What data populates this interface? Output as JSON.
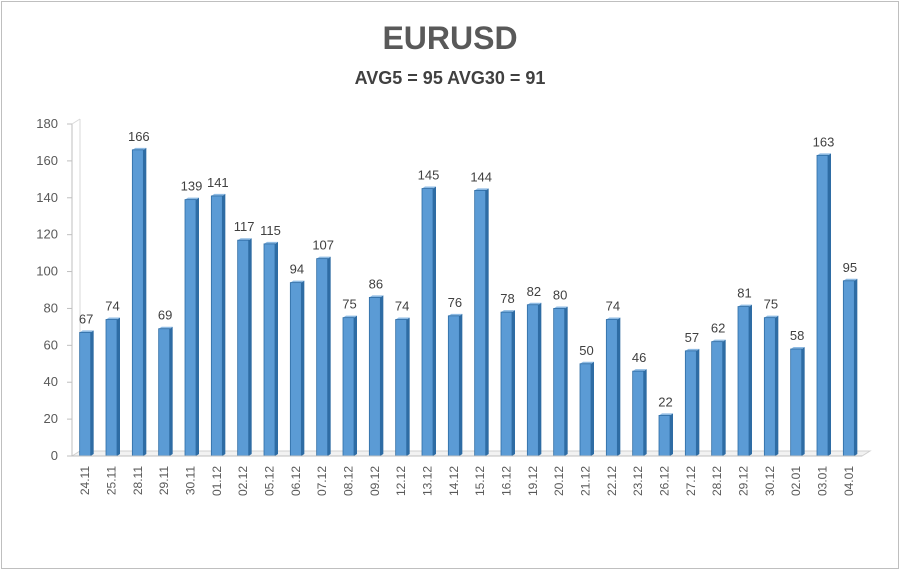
{
  "chart_data": {
    "type": "bar",
    "title": "EURUSD",
    "subtitle": "AVG5 = 95 AVG30 = 91",
    "xlabel": "",
    "ylabel": "",
    "ylim": [
      0,
      180
    ],
    "ytick_step": 20,
    "grid": false,
    "legend": "none",
    "bar_color": "#5b9bd5",
    "bar_dark": "#2e6ca4",
    "categories": [
      "24.11",
      "25.11",
      "28.11",
      "29.11",
      "30.11",
      "01.12",
      "02.12",
      "05.12",
      "06.12",
      "07.12",
      "08.12",
      "09.12",
      "12.12",
      "13.12",
      "14.12",
      "15.12",
      "16.12",
      "19.12",
      "20.12",
      "21.12",
      "22.12",
      "23.12",
      "26.12",
      "27.12",
      "28.12",
      "29.12",
      "30.12",
      "02.01",
      "03.01",
      "04.01"
    ],
    "values": [
      67,
      74,
      166,
      69,
      139,
      141,
      117,
      115,
      94,
      107,
      75,
      86,
      74,
      145,
      76,
      144,
      78,
      82,
      80,
      50,
      74,
      46,
      22,
      57,
      62,
      81,
      75,
      58,
      163,
      95
    ]
  }
}
